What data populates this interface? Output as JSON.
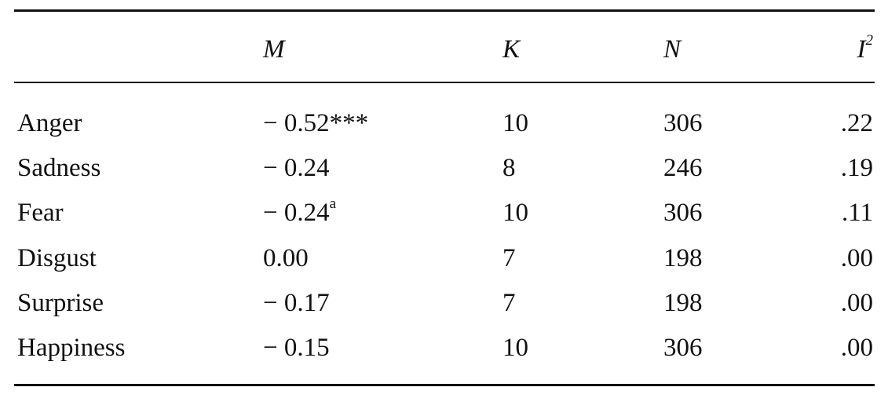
{
  "table": {
    "header": [
      "M",
      "K",
      "N",
      {
        "text": "I",
        "sup": "2"
      }
    ],
    "rows": [
      [
        "Anger",
        "− 0.52***",
        "10",
        "306",
        ".22"
      ],
      [
        "Sadness",
        "− 0.24",
        "8",
        "246",
        ".19"
      ],
      [
        "Fear",
        {
          "text": "− 0.24",
          "sup": "a"
        },
        "10",
        "306",
        ".11"
      ],
      [
        "Disgust",
        "0.00",
        "7",
        "198",
        ".00"
      ],
      [
        "Surprise",
        "− 0.17",
        "7",
        "198",
        ".00"
      ],
      [
        "Happiness",
        "− 0.15",
        "10",
        "306",
        ".00"
      ]
    ]
  }
}
